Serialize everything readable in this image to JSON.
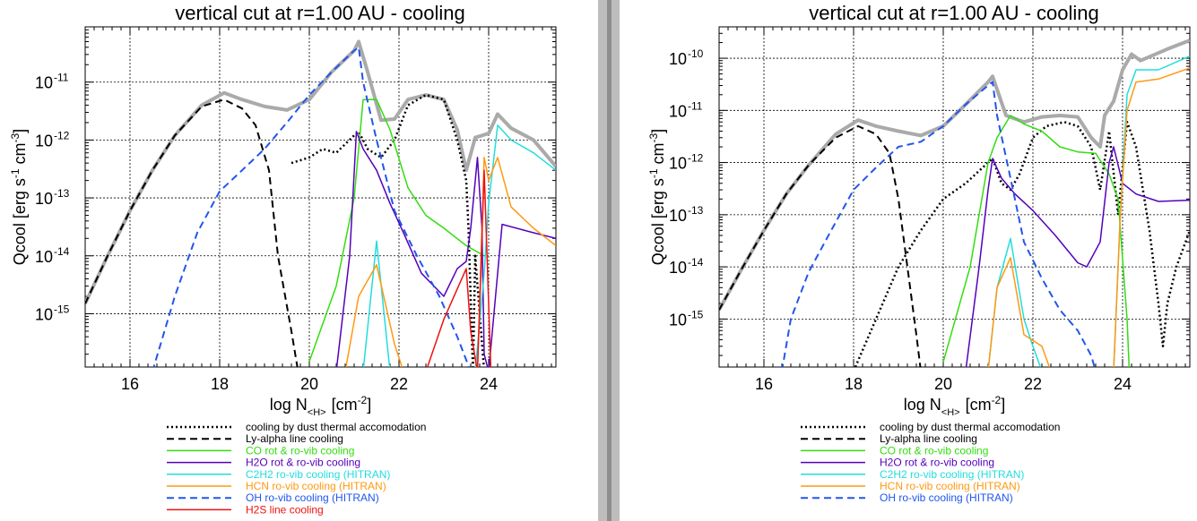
{
  "chart_data": [
    {
      "type": "line",
      "title": "vertical cut at r=1.00 AU - cooling",
      "xlabel": {
        "main": "log N",
        "sub": "<H>",
        "unit": "[cm",
        "unit_sup": "-2",
        "close": "]"
      },
      "ylabel": {
        "main": "Qcool [erg s",
        "sup1": "-1",
        "mid": " cm",
        "sup2": "-3",
        "close": "]"
      },
      "log_y": true,
      "grid": true,
      "xlim": [
        15.0,
        25.5
      ],
      "ylim": [
        1.2e-16,
        9e-11
      ],
      "xticks": [
        16,
        18,
        20,
        22,
        24
      ],
      "xtick_labels": [
        "16",
        "18",
        "20",
        "22",
        "24"
      ],
      "yticks": [
        1e-15,
        1e-14,
        1e-13,
        1e-12,
        1e-11
      ],
      "ytick_labels": [
        [
          "10",
          "-15"
        ],
        [
          "10",
          "-14"
        ],
        [
          "10",
          "-13"
        ],
        [
          "10",
          "-12"
        ],
        [
          "10",
          "-11"
        ]
      ],
      "legend_position": "below",
      "series": [
        {
          "name": "total",
          "color": "#aaaaaa",
          "dash": "solid",
          "width": 4,
          "in_legend": false,
          "x": [
            15.0,
            15.5,
            16.0,
            16.5,
            17.0,
            17.6,
            18.1,
            18.5,
            19.0,
            19.5,
            20.0,
            20.5,
            21.0,
            21.1,
            21.3,
            21.6,
            21.9,
            22.2,
            22.6,
            23.0,
            23.3,
            23.5,
            23.7,
            24.0,
            24.2,
            24.5,
            25.0,
            25.5
          ],
          "y": [
            1.5e-15,
            1e-14,
            6e-14,
            3e-13,
            1.2e-12,
            4e-12,
            6.5e-12,
            5e-12,
            3.8e-12,
            3.3e-12,
            5e-12,
            1.5e-11,
            3.5e-11,
            5e-11,
            1.5e-11,
            2.2e-12,
            2.3e-12,
            5e-12,
            6e-12,
            5e-12,
            1.5e-12,
            3e-13,
            1.1e-12,
            1.3e-12,
            2.8e-12,
            1.6e-12,
            1e-12,
            3.5e-13
          ]
        },
        {
          "name": "cooling by dust thermal accomodation",
          "color": "#000000",
          "dash": "dot",
          "width": 2.5,
          "x": [
            19.6,
            20.0,
            20.3,
            20.6,
            21.0,
            21.1,
            21.3,
            21.6,
            21.9,
            22.2,
            22.6,
            23.0,
            23.3,
            23.5,
            23.55,
            23.65,
            23.7,
            23.8,
            23.9,
            24.0
          ],
          "y": [
            4e-13,
            5e-13,
            7e-13,
            6e-13,
            1.2e-12,
            1.4e-12,
            7e-13,
            5e-13,
            1e-12,
            4e-12,
            6e-12,
            5e-12,
            1e-12,
            2e-13,
            3e-14,
            1e-16,
            1e-14,
            1e-15,
            1e-16,
            1e-16
          ]
        },
        {
          "name": "Ly-alpha line cooling",
          "color": "#000000",
          "dash": "dash",
          "width": 2,
          "x": [
            15.0,
            15.5,
            16.0,
            16.5,
            17.0,
            17.6,
            18.1,
            18.5,
            18.8,
            19.1,
            19.3,
            19.6,
            19.75
          ],
          "y": [
            1.5e-15,
            1e-14,
            6e-14,
            3e-13,
            1.2e-12,
            3.8e-12,
            5e-12,
            3.5e-12,
            1.8e-12,
            3e-13,
            1e-14,
            5e-16,
            1e-16
          ]
        },
        {
          "name": "CO rot & ro-vib cooling",
          "color": "#33dd11",
          "dash": "solid",
          "width": 1.5,
          "x": [
            20.0,
            20.6,
            21.0,
            21.2,
            21.5,
            21.8,
            22.2,
            22.6,
            23.0,
            23.5,
            23.9
          ],
          "y": [
            1.5e-16,
            3e-15,
            1e-13,
            5e-12,
            5e-12,
            1.5e-12,
            1.5e-13,
            5e-14,
            3e-14,
            1.5e-14,
            1e-14
          ]
        },
        {
          "name": "H2O rot & ro-vib cooling",
          "color": "#5500bb",
          "dash": "solid",
          "width": 1.5,
          "x": [
            20.6,
            20.9,
            21.05,
            21.2,
            21.5,
            21.8,
            22.1,
            22.5,
            23.0,
            23.3,
            23.5,
            23.6,
            23.75,
            23.85,
            23.9,
            24.0,
            24.3,
            25.0,
            25.5
          ],
          "y": [
            1e-16,
            1e-14,
            1.4e-12,
            7e-13,
            3e-13,
            8e-14,
            2.5e-14,
            5e-15,
            2e-15,
            6e-15,
            8e-15,
            3e-14,
            5e-13,
            3e-14,
            2e-16,
            1e-16,
            3.5e-14,
            2.5e-14,
            2e-14
          ]
        },
        {
          "name": "C2H2 ro-vib cooling (HITRAN)",
          "color": "#22dddd",
          "dash": "solid",
          "width": 1.5,
          "x": [
            21.2,
            21.5,
            21.8,
            23.7,
            23.9,
            24.0,
            24.2,
            24.5,
            25.0,
            25.5
          ],
          "y": [
            1e-16,
            1.8e-14,
            1e-16,
            1e-16,
            5e-15,
            8e-14,
            1.8e-12,
            1e-12,
            6e-13,
            3e-13
          ]
        },
        {
          "name": "HCN ro-vib cooling (HITRAN)",
          "color": "#ff9911",
          "dash": "solid",
          "width": 1.5,
          "x": [
            20.8,
            21.1,
            21.5,
            21.9,
            22.1,
            22.4,
            23.75,
            23.9,
            24.0,
            24.2,
            24.5,
            25.0,
            25.5
          ],
          "y": [
            1e-16,
            2e-15,
            7e-15,
            3e-16,
            1e-16,
            1e-16,
            1e-16,
            5e-13,
            2e-13,
            5e-13,
            7e-14,
            3e-14,
            1.5e-14
          ]
        },
        {
          "name": "OH ro-vib cooling (HITRAN)",
          "color": "#2255ee",
          "dash": "dash",
          "width": 2,
          "x": [
            16.5,
            17.0,
            17.5,
            18.0,
            18.5,
            19.0,
            19.5,
            20.0,
            20.5,
            21.0,
            21.1,
            21.2,
            21.5,
            21.9,
            22.4,
            22.9,
            23.3,
            23.6,
            23.8
          ],
          "y": [
            1e-16,
            2e-15,
            2.5e-14,
            1.3e-13,
            3e-13,
            7e-13,
            2e-12,
            6e-12,
            1.5e-11,
            3.5e-11,
            4e-11,
            1e-11,
            1e-12,
            6e-14,
            1e-14,
            2e-15,
            4e-16,
            1e-16,
            1e-16
          ]
        },
        {
          "name": "H2S line cooling",
          "color": "#ee1111",
          "dash": "solid",
          "width": 1.5,
          "x": [
            22.6,
            23.0,
            23.5,
            23.6,
            23.75,
            23.9,
            24.05,
            24.15
          ],
          "y": [
            1e-16,
            8e-16,
            6e-15,
            5e-16,
            1e-16,
            3e-13,
            1e-16,
            1e-16
          ]
        }
      ]
    },
    {
      "type": "line",
      "title": "vertical cut at r=1.00 AU - cooling",
      "xlabel": {
        "main": "log N",
        "sub": "<H>",
        "unit": "[cm",
        "unit_sup": "-2",
        "close": "]"
      },
      "ylabel": {
        "main": "Qcool [erg s",
        "sup1": "-1",
        "mid": " cm",
        "sup2": "-3",
        "close": "]"
      },
      "log_y": true,
      "grid": true,
      "xlim": [
        15.0,
        25.5
      ],
      "ylim": [
        1.2e-16,
        4e-10
      ],
      "xticks": [
        16,
        18,
        20,
        22,
        24
      ],
      "xtick_labels": [
        "16",
        "18",
        "20",
        "22",
        "24"
      ],
      "yticks": [
        1e-15,
        1e-14,
        1e-13,
        1e-12,
        1e-11,
        1e-10
      ],
      "ytick_labels": [
        [
          "10",
          "-15"
        ],
        [
          "10",
          "-14"
        ],
        [
          "10",
          "-13"
        ],
        [
          "10",
          "-12"
        ],
        [
          "10",
          "-11"
        ],
        [
          "10",
          "-10"
        ]
      ],
      "legend_position": "below",
      "series": [
        {
          "name": "total",
          "color": "#aaaaaa",
          "dash": "solid",
          "width": 4,
          "in_legend": false,
          "x": [
            15.0,
            15.5,
            16.0,
            16.5,
            17.0,
            17.6,
            18.1,
            18.5,
            19.0,
            19.5,
            20.0,
            20.5,
            21.0,
            21.1,
            21.4,
            21.8,
            22.2,
            22.6,
            23.0,
            23.3,
            23.5,
            23.6,
            23.8,
            24.0,
            24.2,
            24.4,
            25.0,
            25.5
          ],
          "y": [
            1.5e-15,
            9e-15,
            5e-14,
            2.5e-13,
            9e-13,
            3.5e-12,
            6.5e-12,
            5e-12,
            4e-12,
            3.3e-12,
            5e-12,
            1.3e-11,
            3.5e-11,
            4.5e-11,
            8e-12,
            6e-12,
            7.5e-12,
            8e-12,
            7.5e-12,
            3e-12,
            2e-12,
            8e-12,
            1.5e-11,
            6e-11,
            1.2e-10,
            9e-11,
            1.5e-10,
            2.2e-10
          ]
        },
        {
          "name": "cooling by dust thermal accomodation",
          "color": "#000000",
          "dash": "dot",
          "width": 2.5,
          "x": [
            18.0,
            18.5,
            19.0,
            19.5,
            20.0,
            20.5,
            21.0,
            21.1,
            21.3,
            21.5,
            21.7,
            22.0,
            22.3,
            22.7,
            23.0,
            23.3,
            23.5,
            23.7,
            23.9,
            24.1,
            24.3,
            24.6,
            24.8,
            24.9,
            25.0,
            25.2,
            25.5
          ],
          "y": [
            1e-16,
            1e-15,
            1e-14,
            5e-14,
            2e-13,
            4e-13,
            1e-12,
            1.2e-12,
            4e-13,
            3e-13,
            6e-13,
            3e-12,
            5e-12,
            6e-12,
            5e-12,
            2e-12,
            3e-13,
            4e-12,
            1e-13,
            6e-12,
            2e-12,
            5e-14,
            2e-15,
            3e-16,
            2e-15,
            1e-14,
            5e-14
          ]
        },
        {
          "name": "Ly-alpha line cooling",
          "color": "#000000",
          "dash": "dash",
          "width": 2,
          "x": [
            15.0,
            15.5,
            16.0,
            16.5,
            17.0,
            17.6,
            18.1,
            18.5,
            18.8,
            19.0,
            19.2,
            19.4,
            19.5
          ],
          "y": [
            1.5e-15,
            9e-15,
            5e-14,
            2.5e-13,
            9e-13,
            3e-12,
            5e-12,
            3.5e-12,
            1.5e-12,
            2e-13,
            1e-14,
            5e-16,
            1e-16
          ]
        },
        {
          "name": "CO rot & ro-vib cooling",
          "color": "#33dd11",
          "dash": "solid",
          "width": 1.5,
          "x": [
            20.0,
            20.6,
            21.0,
            21.2,
            21.5,
            21.8,
            22.2,
            22.6,
            23.0,
            23.4,
            23.7,
            23.9,
            24.1,
            24.15
          ],
          "y": [
            1.5e-16,
            1e-14,
            1e-12,
            3e-12,
            8e-12,
            5.5e-12,
            4e-12,
            2e-12,
            1.6e-12,
            1.5e-12,
            6e-13,
            2e-13,
            1e-15,
            1e-16
          ]
        },
        {
          "name": "H2O rot & ro-vib cooling",
          "color": "#5500bb",
          "dash": "solid",
          "width": 1.5,
          "x": [
            20.5,
            20.8,
            21.0,
            21.1,
            21.3,
            21.6,
            22.0,
            22.5,
            23.0,
            23.2,
            23.5,
            23.7,
            23.8,
            24.0,
            24.3,
            24.8,
            25.5
          ],
          "y": [
            1e-16,
            1e-14,
            3e-13,
            1.2e-12,
            5e-13,
            2.5e-13,
            1.2e-13,
            4e-14,
            1.2e-14,
            1e-14,
            3e-14,
            1e-12,
            2e-12,
            4e-13,
            2.5e-13,
            1.8e-13,
            1.9e-13
          ]
        },
        {
          "name": "C2H2 ro-vib cooling (HITRAN)",
          "color": "#22dddd",
          "dash": "solid",
          "width": 1.5,
          "x": [
            21.0,
            21.2,
            21.5,
            21.8,
            22.0,
            22.2,
            23.8,
            23.95,
            24.1,
            24.3,
            24.8,
            25.5
          ],
          "y": [
            1e-16,
            4e-15,
            3.5e-14,
            1e-15,
            3e-16,
            1e-16,
            1e-16,
            1e-13,
            2e-11,
            6e-11,
            6e-11,
            1.1e-10
          ]
        },
        {
          "name": "HCN ro-vib cooling (HITRAN)",
          "color": "#ff9911",
          "dash": "solid",
          "width": 1.5,
          "x": [
            21.0,
            21.2,
            21.5,
            21.8,
            22.2,
            22.4,
            23.8,
            23.95,
            24.1,
            24.3,
            24.8,
            25.5
          ],
          "y": [
            1e-16,
            4e-15,
            1.5e-14,
            5e-16,
            3e-16,
            1e-16,
            1e-16,
            1e-13,
            1e-11,
            3.5e-11,
            4e-11,
            6.5e-11
          ]
        },
        {
          "name": "OH ro-vib cooling (HITRAN)",
          "color": "#2255ee",
          "dash": "dash",
          "width": 2,
          "x": [
            16.4,
            16.6,
            17.0,
            17.5,
            18.0,
            18.5,
            19.0,
            19.5,
            20.0,
            20.5,
            21.0,
            21.1,
            21.2,
            21.5,
            21.8,
            22.2,
            22.6,
            23.0,
            23.3,
            23.4
          ],
          "y": [
            1e-16,
            1e-15,
            8e-15,
            5e-14,
            3e-13,
            8e-13,
            2e-12,
            2.5e-12,
            5e-12,
            1.3e-11,
            3e-11,
            3.5e-11,
            8e-12,
            5e-13,
            3e-14,
            6e-15,
            1.5e-15,
            6e-16,
            2e-16,
            1e-16
          ]
        }
      ]
    }
  ]
}
